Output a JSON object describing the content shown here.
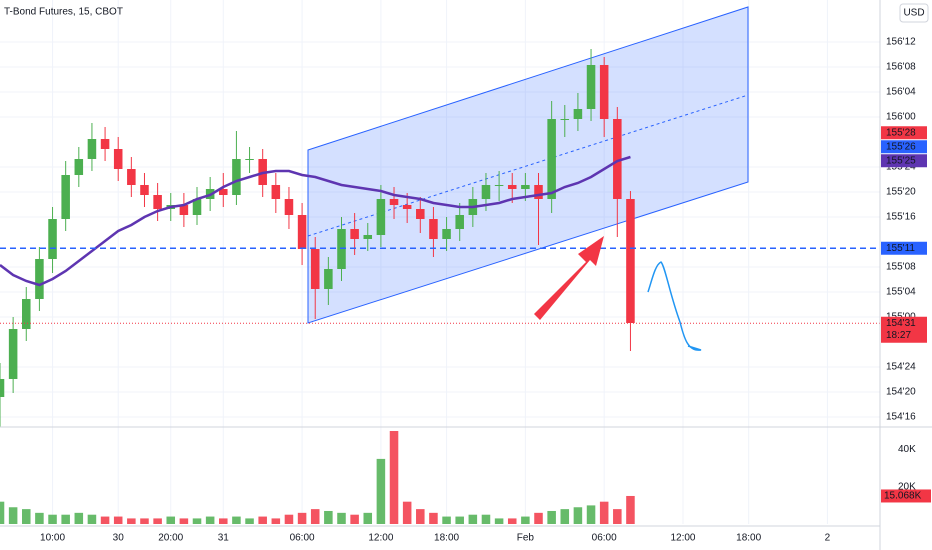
{
  "chart_data": {
    "type": "candlestick",
    "title": "T-Bond Futures, 15, CBOT",
    "currency": "USD",
    "x": [
      0,
      1,
      2,
      3,
      4,
      5,
      6,
      7,
      8,
      9,
      10,
      11,
      12,
      13,
      14,
      15,
      16,
      17,
      18,
      19,
      20,
      21,
      22,
      23,
      24,
      25,
      26,
      27,
      28,
      29,
      30,
      31,
      32,
      33,
      34,
      35,
      36,
      37,
      38,
      39,
      40,
      41,
      42,
      43,
      44,
      45,
      46,
      47,
      48
    ],
    "open": [
      154.6,
      154.69,
      154.94,
      155.09,
      155.29,
      155.49,
      155.71,
      155.79,
      155.89,
      155.84,
      155.74,
      155.66,
      155.61,
      155.54,
      155.56,
      155.51,
      155.59,
      155.64,
      155.61,
      155.79,
      155.79,
      155.66,
      155.59,
      155.51,
      155.34,
      155.14,
      155.24,
      155.44,
      155.39,
      155.41,
      155.59,
      155.56,
      155.54,
      155.49,
      155.39,
      155.44,
      155.51,
      155.59,
      155.66,
      155.66,
      155.64,
      155.66,
      155.59,
      155.99,
      155.99,
      156.04,
      156.26,
      155.99,
      155.59
    ],
    "high": [
      154.77,
      155.0,
      155.15,
      155.35,
      155.55,
      155.78,
      155.85,
      155.97,
      155.95,
      155.9,
      155.8,
      155.72,
      155.67,
      155.62,
      155.62,
      155.65,
      155.7,
      155.72,
      155.93,
      155.85,
      155.84,
      155.72,
      155.65,
      155.57,
      155.4,
      155.3,
      155.5,
      155.52,
      155.47,
      155.66,
      155.65,
      155.62,
      155.6,
      155.55,
      155.5,
      155.57,
      155.65,
      155.72,
      155.73,
      155.72,
      155.72,
      155.72,
      156.08,
      156.06,
      156.12,
      156.34,
      156.3,
      156.05,
      155.63
    ],
    "low": [
      154.45,
      154.62,
      154.88,
      155.03,
      155.22,
      155.43,
      155.65,
      155.73,
      155.78,
      155.68,
      155.6,
      155.55,
      155.48,
      155.48,
      155.45,
      155.46,
      155.53,
      155.55,
      155.56,
      155.72,
      155.6,
      155.52,
      155.44,
      155.26,
      154.99,
      155.06,
      155.18,
      155.31,
      155.33,
      155.35,
      155.49,
      155.47,
      155.42,
      155.3,
      155.33,
      155.38,
      155.45,
      155.53,
      155.58,
      155.57,
      155.58,
      155.36,
      155.52,
      155.9,
      155.93,
      155.98,
      155.9,
      155.4,
      154.83
    ],
    "close": [
      154.69,
      154.94,
      155.09,
      155.29,
      155.49,
      155.71,
      155.79,
      155.89,
      155.84,
      155.74,
      155.66,
      155.61,
      155.54,
      155.56,
      155.51,
      155.59,
      155.64,
      155.61,
      155.79,
      155.79,
      155.66,
      155.59,
      155.51,
      155.34,
      155.14,
      155.24,
      155.44,
      155.39,
      155.41,
      155.59,
      155.56,
      155.54,
      155.49,
      155.39,
      155.44,
      155.51,
      155.59,
      155.66,
      155.66,
      155.64,
      155.66,
      155.59,
      155.99,
      155.99,
      156.04,
      156.26,
      155.99,
      155.59,
      154.97
    ],
    "up_color": "#4caf50",
    "down_color": "#f23645",
    "ma_values": [
      155.26,
      155.21,
      155.18,
      155.16,
      155.19,
      155.23,
      155.28,
      155.33,
      155.38,
      155.43,
      155.46,
      155.5,
      155.53,
      155.55,
      155.56,
      155.59,
      155.61,
      155.65,
      155.68,
      155.7,
      155.72,
      155.73,
      155.73,
      155.71,
      155.7,
      155.68,
      155.66,
      155.65,
      155.64,
      155.63,
      155.61,
      155.6,
      155.59,
      155.57,
      155.56,
      155.55,
      155.55,
      155.56,
      155.57,
      155.59,
      155.6,
      155.61,
      155.62,
      155.65,
      155.67,
      155.7,
      155.74,
      155.78,
      155.8
    ],
    "ma_color": "#5e35b1",
    "xlim": [
      0,
      67
    ],
    "xticks": [
      {
        "value": 4,
        "label": "10:00"
      },
      {
        "value": 9,
        "label": "30"
      },
      {
        "value": 13,
        "label": "20:00"
      },
      {
        "value": 17,
        "label": "31"
      },
      {
        "value": 23,
        "label": "06:00"
      },
      {
        "value": 29,
        "label": "12:00"
      },
      {
        "value": 34,
        "label": "18:00"
      },
      {
        "value": 40,
        "label": "Feb"
      },
      {
        "value": 46,
        "label": "06:00"
      },
      {
        "value": 52,
        "label": "12:00"
      },
      {
        "value": 57,
        "label": "18:00"
      },
      {
        "value": 63,
        "label": "2"
      }
    ],
    "ylim": [
      154.475,
      156.585
    ],
    "yticks": [
      {
        "value": 154.5,
        "label": "154'16"
      },
      {
        "value": 154.625,
        "label": "154'20"
      },
      {
        "value": 154.75,
        "label": "154'24"
      },
      {
        "value": 155,
        "label": "155'00"
      },
      {
        "value": 155.125,
        "label": "155'04"
      },
      {
        "value": 155.25,
        "label": "155'08"
      },
      {
        "value": 155.5,
        "label": "155'16"
      },
      {
        "value": 155.625,
        "label": "155'20"
      },
      {
        "value": 155.75,
        "label": "155'24"
      },
      {
        "value": 156,
        "label": "156'00"
      },
      {
        "value": 156.125,
        "label": "156'04"
      },
      {
        "value": 156.25,
        "label": "156'08"
      },
      {
        "value": 156.375,
        "label": "156'12"
      }
    ],
    "grid": true,
    "price_labels": [
      {
        "value": 155.875,
        "label": "155'28",
        "color": "#f23645"
      },
      {
        "value": 155.8125,
        "label": "155'26",
        "color": "#2962ff"
      },
      {
        "value": 155.78125,
        "label": "155'25",
        "color": "#5e35b1"
      },
      {
        "value": 155.34375,
        "label": "155'11",
        "color": "#2962ff",
        "line": "dashed"
      },
      {
        "value": 154.96875,
        "label": "154'31",
        "color": "#f23645",
        "line": "dotted",
        "sublabel": "18:27"
      }
    ],
    "volume": {
      "values": [
        12000,
        9000,
        8000,
        6000,
        5000,
        5000,
        6000,
        5000,
        4000,
        4000,
        3000,
        3000,
        3000,
        4000,
        3000,
        3000,
        4000,
        3000,
        4000,
        3000,
        4000,
        3000,
        5000,
        6000,
        8000,
        7000,
        6000,
        5000,
        6000,
        35000,
        50000,
        12000,
        8000,
        6000,
        4000,
        4000,
        5000,
        5000,
        3000,
        3000,
        4000,
        6000,
        7000,
        8000,
        9000,
        10000,
        12000,
        8000,
        15068
      ],
      "value_labels": [
        null,
        null,
        null,
        null,
        null,
        null,
        null,
        null,
        null,
        null,
        null,
        null,
        null,
        null,
        null,
        null,
        null,
        null,
        null,
        null,
        null,
        null,
        null,
        null,
        null,
        null,
        null,
        null,
        null,
        null,
        null,
        null,
        null,
        null,
        null,
        null,
        null,
        null,
        null,
        null,
        null,
        null,
        null,
        null,
        null,
        null,
        null,
        null,
        "15.068K"
      ],
      "ylim": [
        0,
        50000
      ],
      "yticks": [
        {
          "value": 20000,
          "label": "20K"
        },
        {
          "value": 40000,
          "label": "40K"
        }
      ]
    }
  }
}
